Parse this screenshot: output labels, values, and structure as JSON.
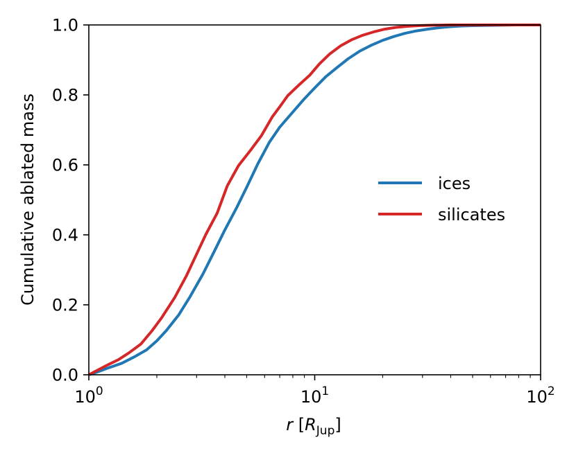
{
  "chart_data": {
    "type": "line",
    "xscale": "log",
    "xlim": [
      1,
      100
    ],
    "ylim": [
      0.0,
      1.0
    ],
    "grid": false,
    "legend_position": "center-right",
    "xlabel": {
      "var": "r",
      "open": "[",
      "sym": "R",
      "sub": "Jup",
      "close": "]"
    },
    "ylabel": "Cumulative ablated mass",
    "x_major_ticks": [
      {
        "value": 1,
        "base": "10",
        "exp": "0"
      },
      {
        "value": 10,
        "base": "10",
        "exp": "1"
      },
      {
        "value": 100,
        "base": "10",
        "exp": "2"
      }
    ],
    "y_ticks": [
      {
        "value": 0.0,
        "label": "0.0"
      },
      {
        "value": 0.2,
        "label": "0.2"
      },
      {
        "value": 0.4,
        "label": "0.4"
      },
      {
        "value": 0.6,
        "label": "0.6"
      },
      {
        "value": 0.8,
        "label": "0.8"
      },
      {
        "value": 1.0,
        "label": "1.0"
      }
    ],
    "series": [
      {
        "name": "ices",
        "color": "#1f77b4",
        "x": [
          1.0,
          1.1,
          1.2,
          1.4,
          1.6,
          1.8,
          2.0,
          2.2,
          2.5,
          2.8,
          3.2,
          3.6,
          4.0,
          4.5,
          5.0,
          5.6,
          6.3,
          7.0,
          8.0,
          9.0,
          10.0,
          11.2,
          12.6,
          14.1,
          15.8,
          17.8,
          20.0,
          22.4,
          25.1,
          28.2,
          31.6,
          35.5,
          39.8,
          44.7,
          50.1,
          63.1,
          79.4,
          100.0
        ],
        "y": [
          0.0,
          0.009,
          0.018,
          0.033,
          0.052,
          0.071,
          0.097,
          0.126,
          0.171,
          0.222,
          0.288,
          0.354,
          0.414,
          0.476,
          0.536,
          0.603,
          0.665,
          0.708,
          0.751,
          0.789,
          0.82,
          0.852,
          0.879,
          0.904,
          0.925,
          0.942,
          0.956,
          0.967,
          0.976,
          0.983,
          0.988,
          0.992,
          0.995,
          0.997,
          0.998,
          0.999,
          1.0,
          1.0
        ]
      },
      {
        "name": "silicates",
        "color": "#d62728",
        "x": [
          1.0,
          1.1,
          1.2,
          1.35,
          1.5,
          1.7,
          1.9,
          2.1,
          2.4,
          2.7,
          3.0,
          3.3,
          3.7,
          4.1,
          4.6,
          5.2,
          5.8,
          6.5,
          7.0,
          7.6,
          8.5,
          9.5,
          10.5,
          11.6,
          13.0,
          14.5,
          16.2,
          18.2,
          20.4,
          22.9,
          25.7,
          28.8,
          32.4,
          40.0,
          50.0,
          70.0,
          100.0
        ],
        "y": [
          0.0,
          0.014,
          0.027,
          0.043,
          0.062,
          0.088,
          0.125,
          0.163,
          0.221,
          0.282,
          0.345,
          0.402,
          0.462,
          0.54,
          0.598,
          0.642,
          0.683,
          0.738,
          0.766,
          0.798,
          0.828,
          0.856,
          0.889,
          0.916,
          0.94,
          0.957,
          0.97,
          0.98,
          0.988,
          0.993,
          0.996,
          0.998,
          0.999,
          1.0,
          1.0,
          1.0,
          1.0
        ]
      }
    ]
  }
}
